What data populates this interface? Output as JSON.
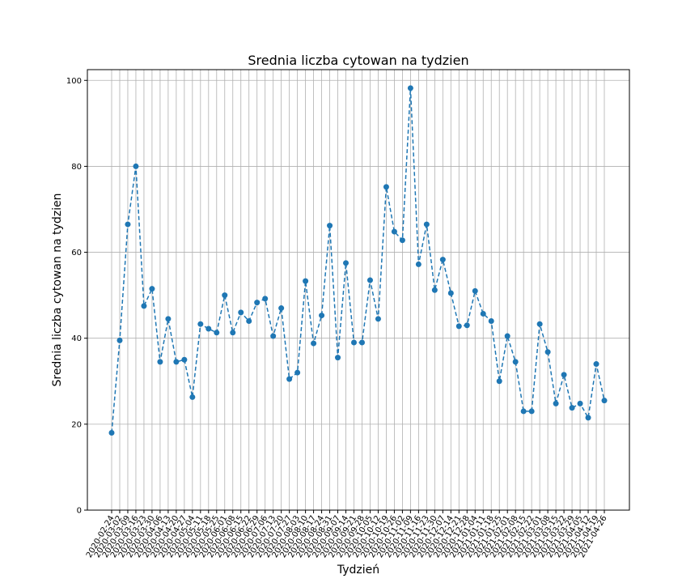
{
  "chart_data": {
    "type": "line",
    "title": "Srednia liczba cytowan na tydzien",
    "xlabel": "Tydzień",
    "ylabel": "Srednia liczba cytowan na tydzien",
    "ylim": [
      0,
      102.5
    ],
    "yticks": [
      0,
      20,
      40,
      60,
      80,
      100
    ],
    "grid": true,
    "line_style": "dashed",
    "marker": "circle",
    "colors": {
      "series": "#1f77b4",
      "grid": "#b0b0b0",
      "axes": "#000000"
    },
    "categories": [
      "2020-02-24",
      "2020-03-02",
      "2020-03-09",
      "2020-03-16",
      "2020-03-23",
      "2020-03-30",
      "2020-04-06",
      "2020-04-13",
      "2020-04-20",
      "2020-04-27",
      "2020-05-04",
      "2020-05-11",
      "2020-05-18",
      "2020-05-25",
      "2020-06-01",
      "2020-06-08",
      "2020-06-15",
      "2020-06-22",
      "2020-06-29",
      "2020-07-06",
      "2020-07-13",
      "2020-07-20",
      "2020-07-27",
      "2020-08-03",
      "2020-08-10",
      "2020-08-17",
      "2020-08-24",
      "2020-08-31",
      "2020-09-07",
      "2020-09-14",
      "2020-09-21",
      "2020-09-28",
      "2020-10-05",
      "2020-10-12",
      "2020-10-19",
      "2020-10-26",
      "2020-11-02",
      "2020-11-09",
      "2020-11-16",
      "2020-11-23",
      "2020-11-30",
      "2020-12-07",
      "2020-12-14",
      "2020-12-21",
      "2020-12-28",
      "2021-01-04",
      "2021-01-11",
      "2021-01-18",
      "2021-01-25",
      "2021-02-01",
      "2021-02-08",
      "2021-02-15",
      "2021-02-22",
      "2021-03-01",
      "2021-03-08",
      "2021-03-15",
      "2021-03-22",
      "2021-03-29",
      "2021-04-05",
      "2021-04-12",
      "2021-04-19",
      "2021-04-26"
    ],
    "values": [
      18,
      39.5,
      66.5,
      80,
      47.5,
      51.5,
      34.5,
      44.5,
      34.5,
      35,
      26.3,
      43.3,
      42.2,
      41.3,
      50,
      41.3,
      46,
      44,
      48.3,
      49.2,
      40.5,
      47,
      30.5,
      32,
      53.3,
      38.8,
      45.3,
      66.2,
      35.5,
      57.5,
      39,
      39,
      53.5,
      44.5,
      75.2,
      64.8,
      62.8,
      98.2,
      57.2,
      66.5,
      51.2,
      58.3,
      50.5,
      42.8,
      43,
      51,
      45.7,
      44,
      30,
      40.5,
      34.5,
      23,
      23,
      43.3,
      36.8,
      24.8,
      31.5,
      23.8,
      24.8,
      21.5,
      34,
      25.5
    ]
  }
}
